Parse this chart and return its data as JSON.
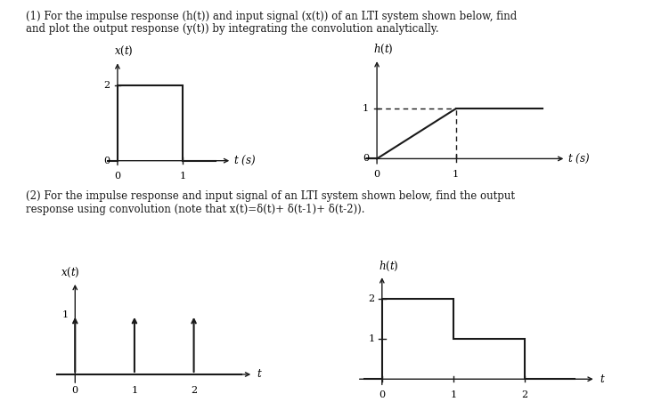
{
  "text1_line1": "(1) For the impulse response (h(t)) and input signal (x(t)) of an LTI system shown below, find",
  "text1_line2": "and plot the output response (y(t)) by integrating the convolution analytically.",
  "text2_line1": "(2) For the impulse response and input signal of an LTI system shown below, find the output",
  "text2_line2": "response using convolution (note that x(t)=δ(t)+ δ(t-1)+ δ(t-2)).",
  "bg_color": "#ffffff",
  "text_color": "#1a1a1a",
  "plot_color": "#1a1a1a",
  "font_size_text": 8.5,
  "font_size_label": 8.5,
  "font_size_tick": 8.0
}
